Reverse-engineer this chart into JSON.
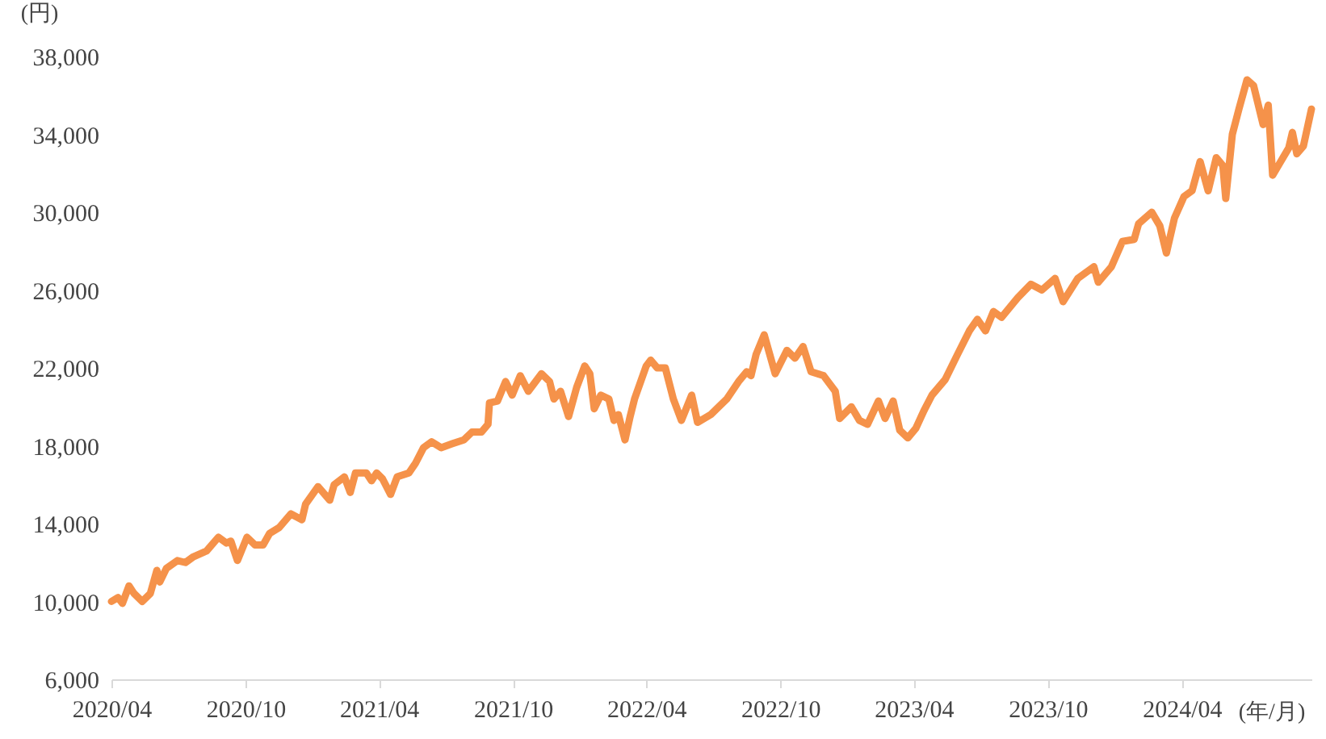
{
  "chart_data": {
    "type": "line",
    "ylabel": "(円)",
    "xlabel": "(年/月)",
    "x": [
      "2020-04-01",
      "2020-04-10",
      "2020-04-16",
      "2020-04-25",
      "2020-05-02",
      "2020-05-13",
      "2020-05-24",
      "2020-06-02",
      "2020-06-06",
      "2020-06-15",
      "2020-06-30",
      "2020-07-11",
      "2020-07-22",
      "2020-08-09",
      "2020-08-25",
      "2020-09-05",
      "2020-09-11",
      "2020-09-20",
      "2020-10-03",
      "2020-10-14",
      "2020-10-25",
      "2020-11-03",
      "2020-11-16",
      "2020-12-02",
      "2020-12-17",
      "2020-12-22",
      "2021-01-08",
      "2021-01-24",
      "2021-01-30",
      "2021-02-13",
      "2021-02-21",
      "2021-02-28",
      "2021-03-15",
      "2021-03-22",
      "2021-03-29",
      "2021-04-06",
      "2021-04-17",
      "2021-04-26",
      "2021-05-12",
      "2021-05-21",
      "2021-06-01",
      "2021-06-12",
      "2021-06-25",
      "2021-07-10",
      "2021-07-26",
      "2021-08-06",
      "2021-08-19",
      "2021-08-28",
      "2021-08-30",
      "2021-09-10",
      "2021-09-21",
      "2021-09-30",
      "2021-10-11",
      "2021-10-22",
      "2021-11-09",
      "2021-11-20",
      "2021-11-26",
      "2021-12-05",
      "2021-12-16",
      "2021-12-27",
      "2022-01-07",
      "2022-01-14",
      "2022-01-20",
      "2022-01-29",
      "2022-02-09",
      "2022-02-16",
      "2022-02-22",
      "2022-03-03",
      "2022-03-10",
      "2022-03-16",
      "2022-04-01",
      "2022-04-07",
      "2022-04-16",
      "2022-04-27",
      "2022-05-08",
      "2022-05-19",
      "2022-06-02",
      "2022-06-10",
      "2022-06-28",
      "2022-07-20",
      "2022-08-05",
      "2022-08-16",
      "2022-08-22",
      "2022-08-29",
      "2022-09-09",
      "2022-09-24",
      "2022-10-10",
      "2022-10-21",
      "2022-11-01",
      "2022-11-12",
      "2022-11-29",
      "2022-12-15",
      "2022-12-21",
      "2023-01-06",
      "2023-01-17",
      "2023-01-28",
      "2023-02-12",
      "2023-02-21",
      "2023-03-04",
      "2023-03-13",
      "2023-03-24",
      "2023-04-04",
      "2023-04-15",
      "2023-04-26",
      "2023-05-14",
      "2023-05-31",
      "2023-06-16",
      "2023-06-27",
      "2023-07-08",
      "2023-07-19",
      "2023-07-30",
      "2023-08-21",
      "2023-09-08",
      "2023-09-23",
      "2023-10-11",
      "2023-10-22",
      "2023-11-11",
      "2023-12-03",
      "2023-12-09",
      "2023-12-27",
      "2024-01-11",
      "2024-01-27",
      "2024-02-02",
      "2024-02-20",
      "2024-03-02",
      "2024-03-11",
      "2024-03-22",
      "2024-04-04",
      "2024-04-15",
      "2024-04-26",
      "2024-05-07",
      "2024-05-18",
      "2024-05-27",
      "2024-05-31",
      "2024-06-09",
      "2024-06-18",
      "2024-06-29",
      "2024-07-08",
      "2024-07-21",
      "2024-07-28",
      "2024-08-03",
      "2024-08-14",
      "2024-08-25",
      "2024-08-30",
      "2024-09-05",
      "2024-09-14",
      "2024-09-25"
    ],
    "series": [
      {
        "color": "#f5924a",
        "values": [
          10000,
          10200,
          9900,
          10800,
          10400,
          10000,
          10400,
          11600,
          11000,
          11700,
          12100,
          12000,
          12300,
          12600,
          13300,
          13000,
          13100,
          12100,
          13300,
          12900,
          12900,
          13500,
          13800,
          14500,
          14200,
          15000,
          15900,
          15200,
          16000,
          16400,
          15600,
          16600,
          16600,
          16200,
          16600,
          16300,
          15500,
          16400,
          16600,
          17100,
          17900,
          18200,
          17900,
          18100,
          18300,
          18700,
          18700,
          19100,
          20200,
          20300,
          21300,
          20600,
          21600,
          20800,
          21700,
          21300,
          20400,
          20800,
          19500,
          21000,
          22100,
          21700,
          19900,
          20600,
          20400,
          19300,
          19600,
          18300,
          19500,
          20400,
          22100,
          22400,
          22000,
          22000,
          20400,
          19300,
          20600,
          19200,
          19600,
          20400,
          21300,
          21800,
          21600,
          22700,
          23700,
          21700,
          22900,
          22500,
          23100,
          21800,
          21600,
          20800,
          19400,
          20000,
          19300,
          19100,
          20300,
          19400,
          20300,
          18800,
          18400,
          18900,
          19800,
          20600,
          21400,
          22700,
          23900,
          24500,
          23900,
          24900,
          24600,
          25600,
          26300,
          26000,
          26600,
          25400,
          26600,
          27200,
          26400,
          27200,
          28500,
          28600,
          29400,
          30000,
          29300,
          27900,
          29700,
          30800,
          31100,
          32600,
          31100,
          32800,
          32400,
          30700,
          34000,
          35300,
          36800,
          36500,
          34500,
          35500,
          31900,
          32600,
          33300,
          34100,
          33000,
          33400,
          35300
        ]
      }
    ],
    "xlim": [
      "2020-04-01",
      "2024-09-25"
    ],
    "xticks": [
      {
        "value": "2020-04-01",
        "label": "2020/04"
      },
      {
        "value": "2020-10-01",
        "label": "2020/10"
      },
      {
        "value": "2021-04-01",
        "label": "2021/04"
      },
      {
        "value": "2021-10-01",
        "label": "2021/10"
      },
      {
        "value": "2022-04-01",
        "label": "2022/04"
      },
      {
        "value": "2022-10-01",
        "label": "2022/10"
      },
      {
        "value": "2023-04-01",
        "label": "2023/04"
      },
      {
        "value": "2023-10-01",
        "label": "2023/10"
      },
      {
        "value": "2024-04-01",
        "label": "2024/04"
      }
    ],
    "ylim": [
      6000,
      38000
    ],
    "yticks": [
      {
        "value": 6000,
        "label": "6,000"
      },
      {
        "value": 10000,
        "label": "10,000"
      },
      {
        "value": 14000,
        "label": "14,000"
      },
      {
        "value": 18000,
        "label": "18,000"
      },
      {
        "value": 22000,
        "label": "22,000"
      },
      {
        "value": 26000,
        "label": "26,000"
      },
      {
        "value": 30000,
        "label": "30,000"
      },
      {
        "value": 34000,
        "label": "34,000"
      },
      {
        "value": 38000,
        "label": "38,000"
      }
    ],
    "grid": false,
    "marker": "none",
    "line_style": "solid"
  }
}
